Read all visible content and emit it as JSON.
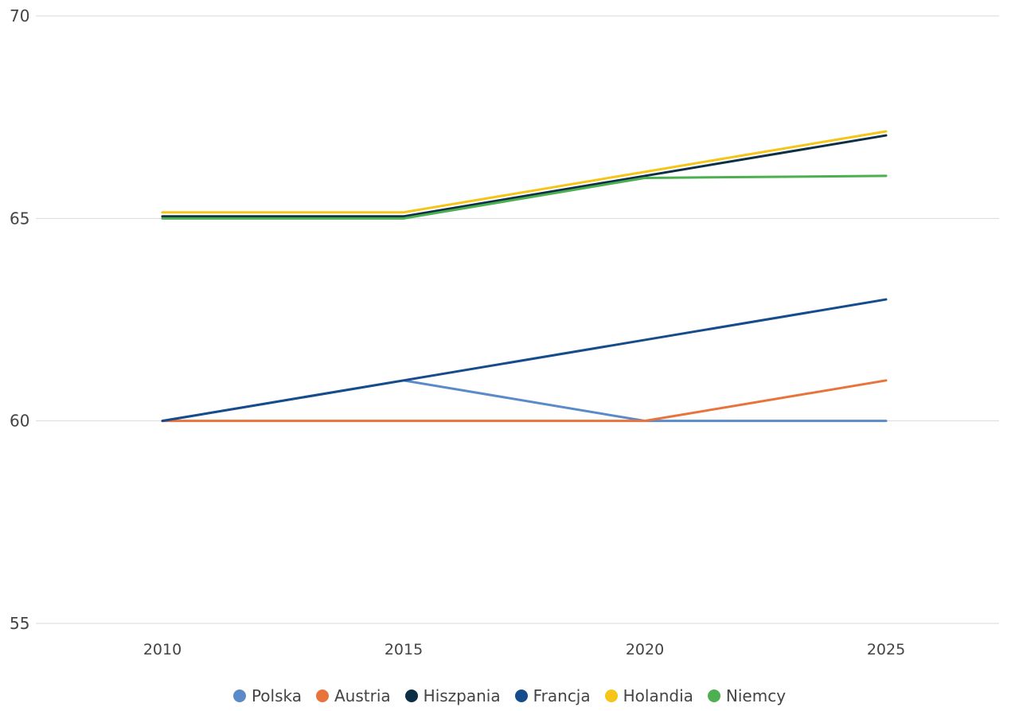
{
  "chart_data": {
    "type": "line",
    "title": "",
    "xlabel": "",
    "ylabel": "",
    "x": [
      "2010",
      "2015",
      "2020",
      "2025"
    ],
    "ylim": [
      55,
      70
    ],
    "yticks": [
      55,
      60,
      65,
      70
    ],
    "grid": true,
    "legend_position": "bottom",
    "series": [
      {
        "name": "Polska",
        "color": "#5B8AC9",
        "values": [
          60,
          61,
          60,
          60
        ]
      },
      {
        "name": "Austria",
        "color": "#E8743B",
        "values": [
          60,
          60,
          60,
          61
        ]
      },
      {
        "name": "Hiszpania",
        "color": "#0D2F45",
        "values": [
          65.05,
          65.05,
          66.05,
          67.05
        ]
      },
      {
        "name": "Francja",
        "color": "#164C8C",
        "values": [
          60,
          61,
          62,
          63
        ]
      },
      {
        "name": "Holandia",
        "color": "#F5C518",
        "values": [
          65.15,
          65.15,
          66.15,
          67.15
        ]
      },
      {
        "name": "Niemcy",
        "color": "#4CAF50",
        "values": [
          65,
          65,
          66,
          66.05
        ]
      }
    ]
  }
}
